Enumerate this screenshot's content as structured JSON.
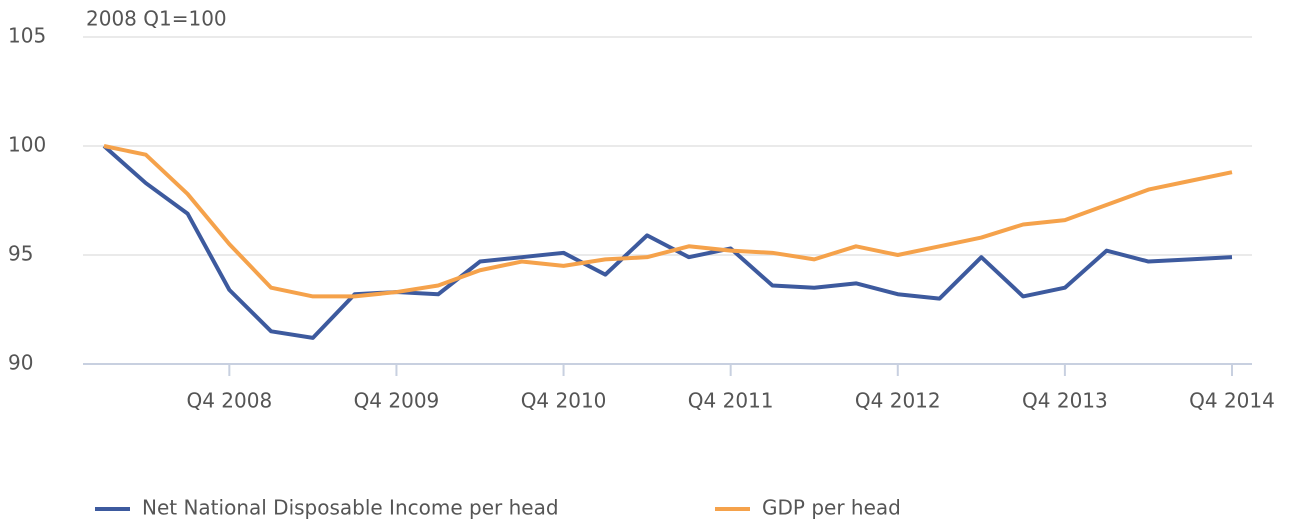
{
  "chart_data": {
    "type": "line",
    "y_axis_label": "2008 Q1=100",
    "categories": [
      null,
      null,
      null,
      "Q4 2008",
      null,
      null,
      null,
      "Q4 2009",
      null,
      null,
      null,
      "Q4 2010",
      null,
      null,
      null,
      "Q4 2011",
      null,
      null,
      null,
      "Q4 2012",
      null,
      null,
      null,
      "Q4 2013",
      null,
      null,
      null,
      "Q4 2014"
    ],
    "series": [
      {
        "name": "Net National Disposable Income per head",
        "color": "#3d5a9e",
        "values": [
          100.0,
          98.3,
          96.9,
          93.4,
          91.5,
          91.2,
          93.2,
          93.3,
          93.2,
          94.7,
          94.9,
          95.1,
          94.1,
          95.9,
          94.9,
          95.3,
          93.6,
          93.5,
          93.7,
          93.2,
          93.0,
          94.9,
          93.1,
          93.5,
          95.2,
          94.7,
          94.8,
          94.9
        ]
      },
      {
        "name": "GDP per head",
        "color": "#f5a24b",
        "values": [
          100.0,
          99.6,
          97.8,
          95.5,
          93.5,
          93.1,
          93.1,
          93.3,
          93.6,
          94.3,
          94.7,
          94.5,
          94.8,
          94.9,
          95.4,
          95.2,
          95.1,
          94.8,
          95.4,
          95.0,
          95.4,
          95.8,
          96.4,
          96.6,
          97.3,
          98.0,
          98.4,
          98.8
        ]
      }
    ],
    "ylim": [
      90,
      105
    ],
    "yticks": [
      90,
      95,
      100,
      105
    ],
    "grid": true,
    "legend": "bottom"
  }
}
